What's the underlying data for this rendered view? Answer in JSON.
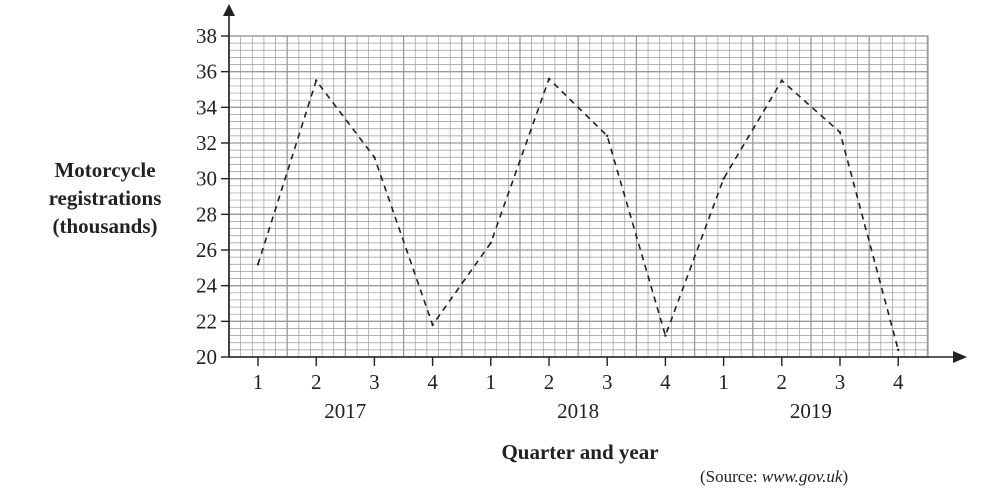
{
  "chart_data": {
    "type": "line",
    "title": "",
    "ylabel_lines": [
      "Motorcycle",
      "registrations",
      "(thousands)"
    ],
    "xlabel": "Quarter and year",
    "ylim": [
      20,
      38
    ],
    "yticks": [
      20,
      22,
      24,
      26,
      28,
      30,
      32,
      34,
      36,
      38
    ],
    "quarters": [
      "1",
      "2",
      "3",
      "4",
      "1",
      "2",
      "3",
      "4",
      "1",
      "2",
      "3",
      "4"
    ],
    "years": [
      "2017",
      "2018",
      "2019"
    ],
    "series": [
      {
        "values": [
          25.2,
          35.5,
          31.2,
          21.8,
          26.4,
          35.6,
          32.4,
          21.2,
          30.0,
          35.5,
          32.6,
          20.4
        ]
      }
    ],
    "line_style": "dashed",
    "grid": true,
    "line_color": "#222222",
    "grid_color": "#9a9a9a"
  },
  "source": {
    "prefix": "(Source: ",
    "site": "www.gov.uk",
    "suffix": ")"
  }
}
